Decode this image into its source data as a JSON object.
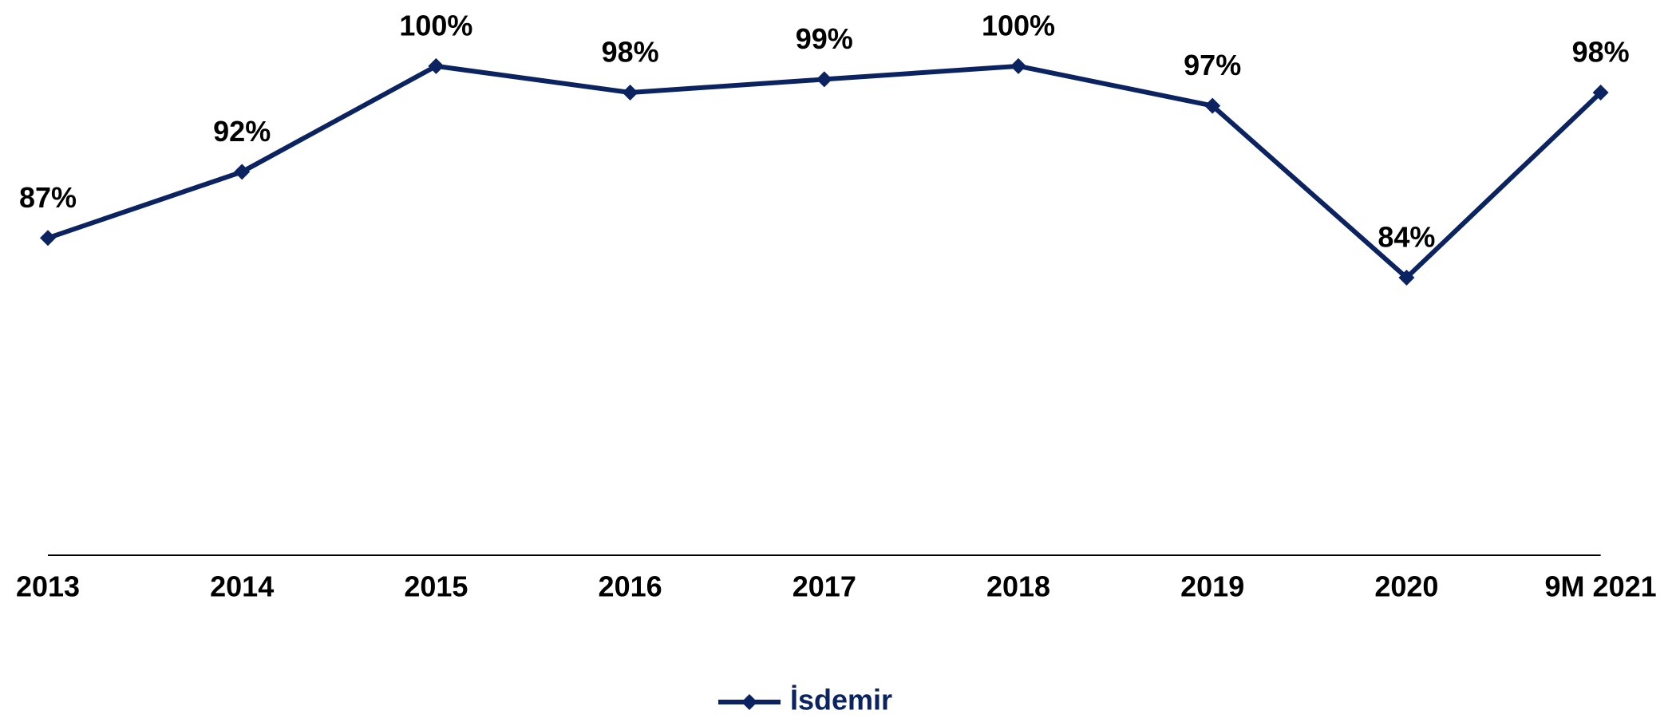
{
  "chart_data": {
    "type": "line",
    "categories": [
      "2013",
      "2014",
      "2015",
      "2016",
      "2017",
      "2018",
      "2019",
      "2020",
      "9M 2021"
    ],
    "series": [
      {
        "name": "İsdemir",
        "color": "#0b2361",
        "values": [
          87,
          92,
          100,
          98,
          99,
          100,
          97,
          84,
          98
        ],
        "value_labels": [
          "87%",
          "92%",
          "100%",
          "98%",
          "99%",
          "100%",
          "97%",
          "84%",
          "98%"
        ]
      }
    ],
    "ylim": [
      63,
      105
    ],
    "grid": false,
    "legend": "bottom"
  }
}
